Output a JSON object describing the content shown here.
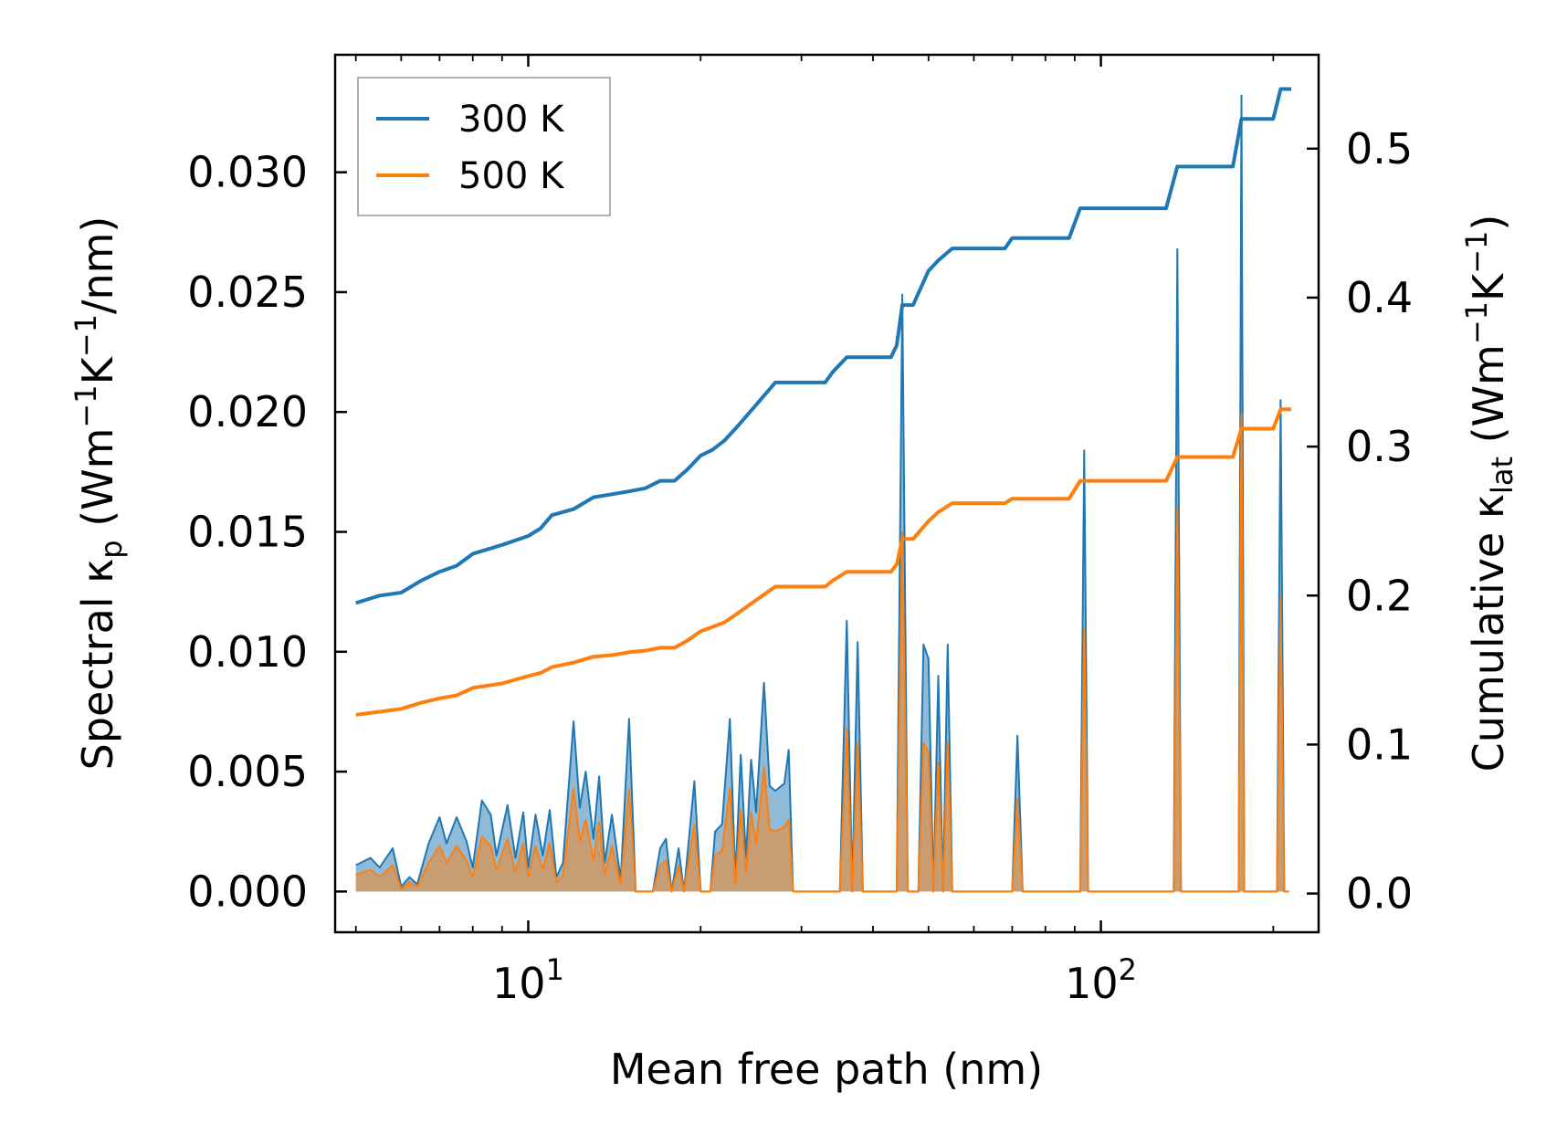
{
  "chart_data": {
    "type": "line",
    "xscale": "log",
    "xlabel": "Mean free path (nm)",
    "ylabel_left": {
      "main": "Spectral κ",
      "sub": "p",
      "unit": "(Wm",
      "e1": "−1",
      "k": "K",
      "e2": "−1",
      "tail": "/nm)"
    },
    "ylabel_right": {
      "main": "Cumulative κ",
      "sub": "lat",
      "unit": "(Wm",
      "e1": "−1",
      "k": "K",
      "e2": "−1",
      "tail": ")"
    },
    "xlim": [
      4.6,
      240
    ],
    "ylim_left": [
      -0.0017,
      0.0349
    ],
    "ylim_right": [
      -0.026,
      0.563
    ],
    "x_major_ticks": [
      {
        "value": 10,
        "base": "10",
        "exp": "1"
      },
      {
        "value": 100,
        "base": "10",
        "exp": "2"
      }
    ],
    "x_minor_ticks": [
      5,
      6,
      7,
      8,
      9,
      20,
      30,
      40,
      50,
      60,
      70,
      80,
      90,
      200
    ],
    "y_left_ticks": [
      {
        "value": 0.0,
        "label": "0.000"
      },
      {
        "value": 0.005,
        "label": "0.005"
      },
      {
        "value": 0.01,
        "label": "0.010"
      },
      {
        "value": 0.015,
        "label": "0.015"
      },
      {
        "value": 0.02,
        "label": "0.020"
      },
      {
        "value": 0.025,
        "label": "0.025"
      },
      {
        "value": 0.03,
        "label": "0.030"
      }
    ],
    "y_right_ticks": [
      {
        "value": 0.0,
        "label": "0.0"
      },
      {
        "value": 0.1,
        "label": "0.1"
      },
      {
        "value": 0.2,
        "label": "0.2"
      },
      {
        "value": 0.3,
        "label": "0.3"
      },
      {
        "value": 0.4,
        "label": "0.4"
      },
      {
        "value": 0.5,
        "label": "0.5"
      }
    ],
    "legend": {
      "location": "top-left"
    },
    "series": [
      {
        "name": "300 K",
        "color": "#1f77b4",
        "cumulative": [
          [
            5,
            0.195
          ],
          [
            5.5,
            0.2
          ],
          [
            6,
            0.202
          ],
          [
            6.5,
            0.21
          ],
          [
            7,
            0.216
          ],
          [
            7.5,
            0.22
          ],
          [
            8,
            0.228
          ],
          [
            9,
            0.234
          ],
          [
            10,
            0.24
          ],
          [
            10.5,
            0.245
          ],
          [
            11,
            0.254
          ],
          [
            12,
            0.258
          ],
          [
            13,
            0.266
          ],
          [
            14,
            0.268
          ],
          [
            15,
            0.27
          ],
          [
            16,
            0.272
          ],
          [
            17,
            0.277
          ],
          [
            18,
            0.277
          ],
          [
            19,
            0.285
          ],
          [
            20,
            0.294
          ],
          [
            21,
            0.298
          ],
          [
            22,
            0.304
          ],
          [
            23,
            0.312
          ],
          [
            25,
            0.328
          ],
          [
            27,
            0.343
          ],
          [
            28,
            0.343
          ],
          [
            32,
            0.343
          ],
          [
            33,
            0.343
          ],
          [
            34,
            0.35
          ],
          [
            36,
            0.36
          ],
          [
            43,
            0.36
          ],
          [
            44,
            0.368
          ],
          [
            45,
            0.395
          ],
          [
            47,
            0.395
          ],
          [
            50,
            0.418
          ],
          [
            52,
            0.425
          ],
          [
            55,
            0.433
          ],
          [
            60,
            0.433
          ],
          [
            68,
            0.433
          ],
          [
            70,
            0.44
          ],
          [
            88,
            0.44
          ],
          [
            92,
            0.46
          ],
          [
            130,
            0.46
          ],
          [
            136,
            0.488
          ],
          [
            170,
            0.488
          ],
          [
            176,
            0.52
          ],
          [
            200,
            0.52
          ],
          [
            206,
            0.54
          ],
          [
            215,
            0.54
          ]
        ],
        "spectral": [
          [
            5,
            0.0011
          ],
          [
            5.3,
            0.0014
          ],
          [
            5.5,
            0.001
          ],
          [
            5.8,
            0.0018
          ],
          [
            6,
            0.0002
          ],
          [
            6.2,
            0.0006
          ],
          [
            6.4,
            0.0003
          ],
          [
            6.7,
            0.002
          ],
          [
            7,
            0.0031
          ],
          [
            7.2,
            0.002
          ],
          [
            7.5,
            0.0031
          ],
          [
            7.8,
            0.0021
          ],
          [
            8,
            0.001
          ],
          [
            8.3,
            0.0038
          ],
          [
            8.6,
            0.0032
          ],
          [
            8.8,
            0.0015
          ],
          [
            9.2,
            0.0036
          ],
          [
            9.5,
            0.0014
          ],
          [
            9.8,
            0.0033
          ],
          [
            10,
            0.001
          ],
          [
            10.3,
            0.0032
          ],
          [
            10.6,
            0.0015
          ],
          [
            10.9,
            0.0034
          ],
          [
            11.2,
            0.0006
          ],
          [
            11.5,
            0.0012
          ],
          [
            12,
            0.0071
          ],
          [
            12.3,
            0.0035
          ],
          [
            12.6,
            0.005
          ],
          [
            13,
            0.0022
          ],
          [
            13.3,
            0.0048
          ],
          [
            13.6,
            0.0012
          ],
          [
            14,
            0.0032
          ],
          [
            14.5,
            0.0005
          ],
          [
            15,
            0.0072
          ],
          [
            15.4,
            0.0
          ],
          [
            16.5,
            0.0
          ],
          [
            17,
            0.0018
          ],
          [
            17.4,
            0.0022
          ],
          [
            17.8,
            0.0
          ],
          [
            18.3,
            0.0018
          ],
          [
            18.7,
            0.0
          ],
          [
            19.5,
            0.0046
          ],
          [
            20,
            0.0
          ],
          [
            20.8,
            0.0
          ],
          [
            21.2,
            0.0025
          ],
          [
            21.8,
            0.0028
          ],
          [
            22.5,
            0.0072
          ],
          [
            23,
            0.0005
          ],
          [
            23.5,
            0.0057
          ],
          [
            24,
            0.0014
          ],
          [
            24.5,
            0.0055
          ],
          [
            25,
            0.0033
          ],
          [
            25.8,
            0.0087
          ],
          [
            26.4,
            0.0044
          ],
          [
            27,
            0.0042
          ],
          [
            28,
            0.0045
          ],
          [
            28.5,
            0.0059
          ],
          [
            29,
            0.0
          ],
          [
            35,
            0.0
          ],
          [
            36,
            0.0113
          ],
          [
            36.8,
            0.0
          ],
          [
            37.6,
            0.0104
          ],
          [
            38.4,
            0.0
          ],
          [
            44,
            0.0
          ],
          [
            45,
            0.0249
          ],
          [
            46,
            0.0
          ],
          [
            48,
            0.0
          ],
          [
            49,
            0.0103
          ],
          [
            50,
            0.0097
          ],
          [
            51,
            0.0
          ],
          [
            52,
            0.009
          ],
          [
            53,
            0.0
          ],
          [
            54,
            0.0103
          ],
          [
            55,
            0.0
          ],
          [
            70,
            0.0
          ],
          [
            71.5,
            0.0065
          ],
          [
            73,
            0.0
          ],
          [
            92,
            0.0
          ],
          [
            93.5,
            0.0184
          ],
          [
            95,
            0.0
          ],
          [
            134,
            0.0
          ],
          [
            136,
            0.0268
          ],
          [
            138,
            0.0
          ],
          [
            174,
            0.0
          ],
          [
            176,
            0.0332
          ],
          [
            178,
            0.0
          ],
          [
            203,
            0.0
          ],
          [
            206,
            0.0205
          ],
          [
            209,
            0.0
          ],
          [
            213,
            0.0
          ]
        ]
      },
      {
        "name": "500 K",
        "color": "#ff7f0e",
        "cumulative": [
          [
            5,
            0.12
          ],
          [
            5.5,
            0.122
          ],
          [
            6,
            0.124
          ],
          [
            6.5,
            0.128
          ],
          [
            7,
            0.131
          ],
          [
            7.5,
            0.133
          ],
          [
            8,
            0.138
          ],
          [
            9,
            0.141
          ],
          [
            10,
            0.146
          ],
          [
            10.5,
            0.148
          ],
          [
            11,
            0.152
          ],
          [
            12,
            0.155
          ],
          [
            13,
            0.159
          ],
          [
            14,
            0.16
          ],
          [
            15,
            0.162
          ],
          [
            16,
            0.163
          ],
          [
            17,
            0.165
          ],
          [
            18,
            0.165
          ],
          [
            19,
            0.17
          ],
          [
            20,
            0.176
          ],
          [
            21,
            0.179
          ],
          [
            22,
            0.182
          ],
          [
            23,
            0.187
          ],
          [
            25,
            0.197
          ],
          [
            27,
            0.206
          ],
          [
            28,
            0.206
          ],
          [
            32,
            0.206
          ],
          [
            33,
            0.206
          ],
          [
            34,
            0.21
          ],
          [
            36,
            0.216
          ],
          [
            43,
            0.216
          ],
          [
            44,
            0.221
          ],
          [
            45,
            0.238
          ],
          [
            47,
            0.238
          ],
          [
            50,
            0.25
          ],
          [
            52,
            0.256
          ],
          [
            55,
            0.262
          ],
          [
            60,
            0.262
          ],
          [
            68,
            0.262
          ],
          [
            70,
            0.265
          ],
          [
            88,
            0.265
          ],
          [
            92,
            0.277
          ],
          [
            130,
            0.277
          ],
          [
            136,
            0.293
          ],
          [
            170,
            0.293
          ],
          [
            176,
            0.312
          ],
          [
            200,
            0.312
          ],
          [
            206,
            0.325
          ],
          [
            215,
            0.325
          ]
        ],
        "spectral": [
          [
            5,
            0.0007
          ],
          [
            5.3,
            0.0009
          ],
          [
            5.5,
            0.0006
          ],
          [
            5.8,
            0.0011
          ],
          [
            6,
            0.0001
          ],
          [
            6.2,
            0.0004
          ],
          [
            6.4,
            0.0002
          ],
          [
            6.7,
            0.0012
          ],
          [
            7,
            0.0019
          ],
          [
            7.2,
            0.0012
          ],
          [
            7.5,
            0.0019
          ],
          [
            7.8,
            0.0013
          ],
          [
            8,
            0.0006
          ],
          [
            8.3,
            0.0023
          ],
          [
            8.6,
            0.0019
          ],
          [
            8.8,
            0.0009
          ],
          [
            9.2,
            0.0022
          ],
          [
            9.5,
            0.0008
          ],
          [
            9.8,
            0.002
          ],
          [
            10,
            0.0006
          ],
          [
            10.3,
            0.0019
          ],
          [
            10.6,
            0.0009
          ],
          [
            10.9,
            0.002
          ],
          [
            11.2,
            0.0004
          ],
          [
            11.5,
            0.0007
          ],
          [
            12,
            0.0043
          ],
          [
            12.3,
            0.0021
          ],
          [
            12.6,
            0.003
          ],
          [
            13,
            0.0013
          ],
          [
            13.3,
            0.0029
          ],
          [
            13.6,
            0.0007
          ],
          [
            14,
            0.0019
          ],
          [
            14.5,
            0.0003
          ],
          [
            15,
            0.0043
          ],
          [
            15.4,
            0.0
          ],
          [
            16.5,
            0.0
          ],
          [
            17,
            0.0011
          ],
          [
            17.4,
            0.0013
          ],
          [
            17.8,
            0.0
          ],
          [
            18.3,
            0.0011
          ],
          [
            18.7,
            0.0
          ],
          [
            19.5,
            0.0028
          ],
          [
            20,
            0.0
          ],
          [
            20.8,
            0.0
          ],
          [
            21.2,
            0.0015
          ],
          [
            21.8,
            0.0017
          ],
          [
            22.5,
            0.0043
          ],
          [
            23,
            0.0003
          ],
          [
            23.5,
            0.0034
          ],
          [
            24,
            0.0008
          ],
          [
            24.5,
            0.0033
          ],
          [
            25,
            0.002
          ],
          [
            25.8,
            0.0052
          ],
          [
            26.4,
            0.0026
          ],
          [
            27,
            0.0025
          ],
          [
            28,
            0.0027
          ],
          [
            28.5,
            0.003
          ],
          [
            29,
            0.0
          ],
          [
            35,
            0.0
          ],
          [
            36,
            0.0068
          ],
          [
            36.8,
            0.0
          ],
          [
            37.6,
            0.0062
          ],
          [
            38.4,
            0.0
          ],
          [
            44,
            0.0
          ],
          [
            45,
            0.015
          ],
          [
            46,
            0.0
          ],
          [
            48,
            0.0
          ],
          [
            49,
            0.0062
          ],
          [
            50,
            0.0058
          ],
          [
            51,
            0.0
          ],
          [
            52,
            0.0054
          ],
          [
            53,
            0.0
          ],
          [
            54,
            0.0062
          ],
          [
            55,
            0.0
          ],
          [
            70,
            0.0
          ],
          [
            71.5,
            0.0039
          ],
          [
            73,
            0.0
          ],
          [
            92,
            0.0
          ],
          [
            93.5,
            0.011
          ],
          [
            95,
            0.0
          ],
          [
            134,
            0.0
          ],
          [
            136,
            0.016
          ],
          [
            138,
            0.0
          ],
          [
            174,
            0.0
          ],
          [
            176,
            0.0199
          ],
          [
            178,
            0.0
          ],
          [
            203,
            0.0
          ],
          [
            206,
            0.0123
          ],
          [
            209,
            0.0
          ],
          [
            213,
            0.0
          ]
        ]
      }
    ]
  }
}
